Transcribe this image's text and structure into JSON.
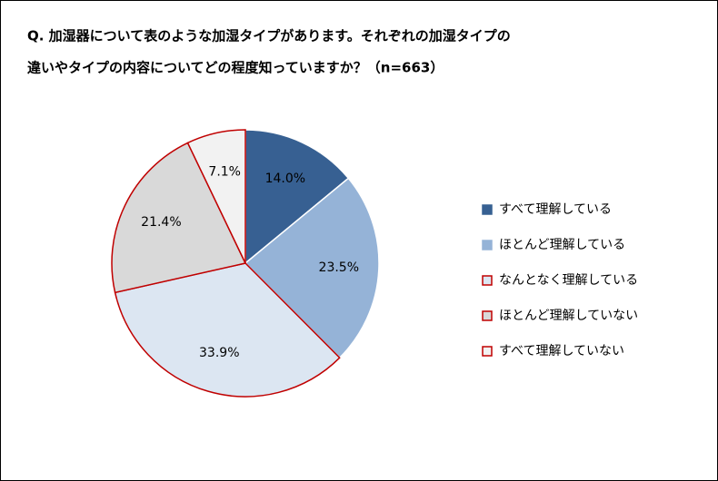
{
  "chart_data": {
    "type": "pie",
    "title": [
      "Q. 加湿器について表のような加湿タイプがあります。それぞれの加湿タイプの",
      "違いやタイプの内容についてどの程度知っていますか？（n=663）"
    ],
    "categories": [
      "すべて理解している",
      "ほとんど理解している",
      "なんとなく理解している",
      "ほとんど理解していない",
      "すべて理解していない"
    ],
    "values": [
      14.0,
      23.5,
      33.9,
      21.4,
      7.1
    ],
    "value_labels": [
      "14.0%",
      "23.5%",
      "33.9%",
      "21.4%",
      "7.1%"
    ],
    "colors": [
      "#376092",
      "#95b3d7",
      "#dce6f2",
      "#d9d9d9",
      "#f2f2f2"
    ],
    "edgecolors": [
      "#ffffff",
      "#ffffff",
      "#c00000",
      "#c00000",
      "#c00000"
    ],
    "legend": "right"
  }
}
